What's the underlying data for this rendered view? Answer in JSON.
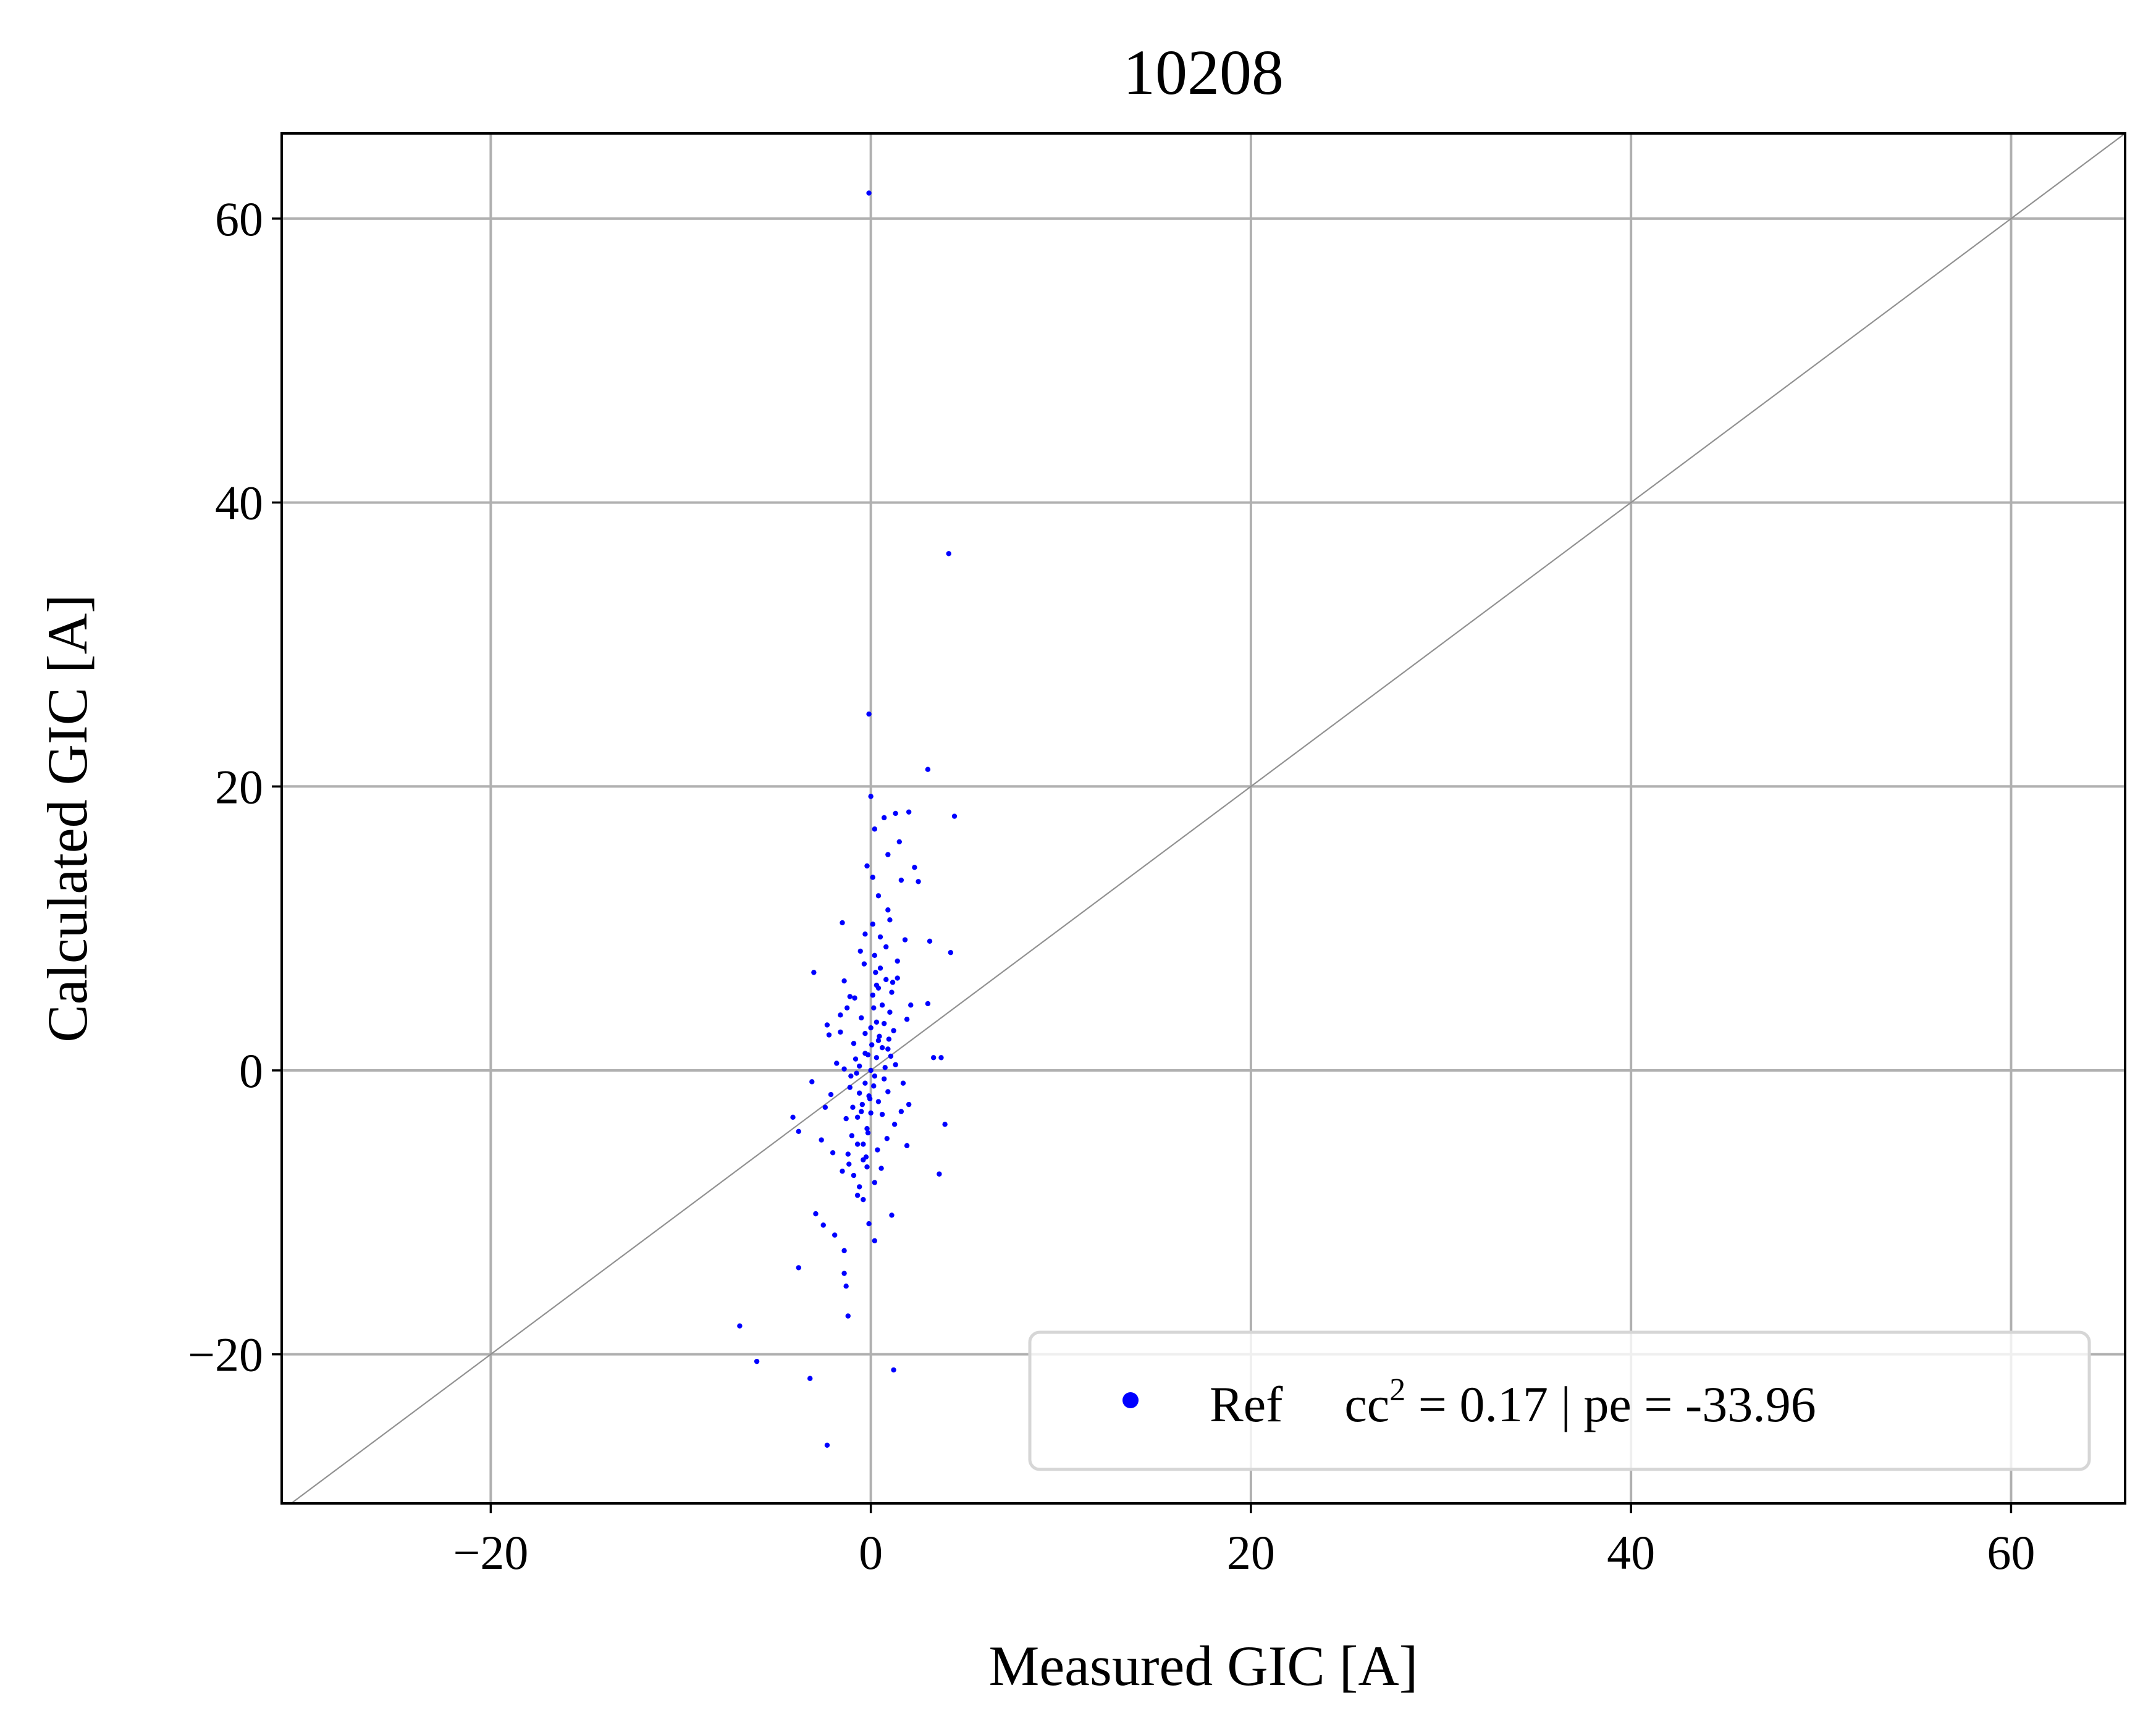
{
  "chart_data": {
    "type": "scatter",
    "title": "10208",
    "xlabel": "Measured GIC [A]",
    "ylabel": "Calculated GIC [A]",
    "xlim": [
      -31,
      66
    ],
    "ylim": [
      -30.5,
      66
    ],
    "xticks": [
      -20,
      0,
      20,
      40,
      60
    ],
    "yticks": [
      -20,
      0,
      20,
      40,
      60
    ],
    "xtick_labels": [
      "−20",
      "0",
      "20",
      "40",
      "60"
    ],
    "ytick_labels": [
      "−20",
      "0",
      "20",
      "40",
      "60"
    ],
    "grid": true,
    "identity_line": true,
    "legend": {
      "placement": "lower-right",
      "label": "Ref",
      "stat_prefix": "cc",
      "stat_superscript": "2",
      "stat_suffix": " = 0.17 | pe = -33.96"
    },
    "series": [
      {
        "name": "Ref",
        "color": "#0000ff",
        "marker": "dot",
        "points": [
          [
            -0.1,
            61.8
          ],
          [
            4.1,
            36.4
          ],
          [
            -0.1,
            25.1
          ],
          [
            3.0,
            21.2
          ],
          [
            4.4,
            17.9
          ],
          [
            1.3,
            18.1
          ],
          [
            0.7,
            17.8
          ],
          [
            2.0,
            18.2
          ],
          [
            0.0,
            19.3
          ],
          [
            0.2,
            17.0
          ],
          [
            1.5,
            16.1
          ],
          [
            0.9,
            15.2
          ],
          [
            2.3,
            14.3
          ],
          [
            -0.2,
            14.4
          ],
          [
            0.1,
            13.6
          ],
          [
            1.6,
            13.4
          ],
          [
            2.5,
            13.3
          ],
          [
            0.4,
            12.3
          ],
          [
            -1.5,
            10.4
          ],
          [
            0.9,
            11.3
          ],
          [
            1.0,
            10.6
          ],
          [
            3.1,
            9.1
          ],
          [
            4.2,
            8.3
          ],
          [
            -0.3,
            9.6
          ],
          [
            1.8,
            9.2
          ],
          [
            -3.0,
            6.9
          ],
          [
            3.0,
            4.7
          ],
          [
            2.1,
            4.6
          ],
          [
            -1.4,
            6.3
          ],
          [
            -1.1,
            5.2
          ],
          [
            -2.3,
            3.2
          ],
          [
            -1.6,
            2.7
          ],
          [
            3.3,
            0.9
          ],
          [
            3.7,
            0.9
          ],
          [
            -3.1,
            -0.8
          ],
          [
            -4.1,
            -3.3
          ],
          [
            -3.8,
            -4.3
          ],
          [
            -2.0,
            -5.8
          ],
          [
            3.9,
            -3.8
          ],
          [
            3.6,
            -7.3
          ],
          [
            -2.9,
            -10.1
          ],
          [
            -2.5,
            -10.9
          ],
          [
            -1.9,
            -11.6
          ],
          [
            -1.4,
            -12.7
          ],
          [
            -3.8,
            -13.9
          ],
          [
            -1.3,
            -15.2
          ],
          [
            -1.4,
            -14.3
          ],
          [
            -1.2,
            -17.3
          ],
          [
            -6.9,
            -18.0
          ],
          [
            -6.0,
            -20.5
          ],
          [
            -3.2,
            -21.7
          ],
          [
            1.2,
            -21.1
          ],
          [
            -2.3,
            -26.4
          ],
          [
            0.2,
            -12.0
          ],
          [
            1.1,
            -10.2
          ],
          [
            -2.6,
            -4.9
          ],
          [
            -2.4,
            -2.6
          ],
          [
            -2.1,
            -1.7
          ],
          [
            -1.8,
            0.5
          ],
          [
            2.0,
            -2.4
          ],
          [
            1.9,
            -5.3
          ],
          [
            1.7,
            -0.9
          ],
          [
            -2.2,
            2.5
          ],
          [
            1.9,
            3.6
          ],
          [
            1.4,
            6.5
          ],
          [
            -0.6,
            0.3
          ],
          [
            0.2,
            -0.4
          ],
          [
            -0.3,
            1.2
          ],
          [
            0.4,
            2.1
          ],
          [
            -0.1,
            -1.8
          ],
          [
            0.3,
            3.4
          ],
          [
            -0.5,
            -2.9
          ],
          [
            0.6,
            4.6
          ],
          [
            -0.2,
            -4.1
          ],
          [
            0.1,
            5.3
          ],
          [
            -0.7,
            -5.2
          ],
          [
            0.8,
            6.4
          ],
          [
            -0.4,
            -6.3
          ],
          [
            0.5,
            7.2
          ],
          [
            -0.9,
            -7.4
          ],
          [
            0.2,
            8.1
          ],
          [
            -0.6,
            -8.2
          ],
          [
            0.9,
            1.5
          ],
          [
            -1.1,
            -1.2
          ],
          [
            0.0,
            0.0
          ],
          [
            1.2,
            2.8
          ],
          [
            -1.3,
            -3.4
          ],
          [
            0.7,
            -0.6
          ],
          [
            -0.8,
            0.8
          ],
          [
            0.4,
            -2.2
          ],
          [
            -0.3,
            2.6
          ],
          [
            1.0,
            4.1
          ],
          [
            -1.0,
            -4.6
          ],
          [
            0.6,
            -3.1
          ],
          [
            -0.5,
            3.7
          ],
          [
            0.3,
            6.0
          ],
          [
            -0.2,
            -6.8
          ],
          [
            1.1,
            5.5
          ],
          [
            -1.2,
            -5.9
          ],
          [
            0.2,
            -7.9
          ],
          [
            0.5,
            9.4
          ],
          [
            -0.4,
            -9.1
          ],
          [
            0.8,
            8.7
          ],
          [
            -0.7,
            -8.8
          ],
          [
            0.1,
            10.3
          ],
          [
            -0.1,
            -10.8
          ],
          [
            1.3,
            0.4
          ],
          [
            -1.4,
            0.1
          ],
          [
            0.9,
            -1.5
          ],
          [
            -0.9,
            1.9
          ],
          [
            0.0,
            3.0
          ],
          [
            0.0,
            -3.0
          ],
          [
            0.3,
            0.9
          ],
          [
            -0.3,
            -0.9
          ],
          [
            0.6,
            1.6
          ],
          [
            -0.6,
            -1.6
          ],
          [
            0.45,
            2.4
          ],
          [
            -0.45,
            -2.4
          ],
          [
            0.15,
            4.4
          ],
          [
            -0.15,
            -4.4
          ],
          [
            0.7,
            3.3
          ],
          [
            -0.7,
            -3.3
          ],
          [
            1.4,
            7.7
          ],
          [
            -1.5,
            -7.1
          ],
          [
            0.25,
            6.9
          ],
          [
            -0.25,
            -6.1
          ],
          [
            0.85,
            -4.8
          ],
          [
            -0.85,
            5.1
          ],
          [
            1.6,
            -2.9
          ],
          [
            -1.6,
            3.9
          ],
          [
            0.35,
            -5.6
          ],
          [
            -0.35,
            7.5
          ],
          [
            1.05,
            1.0
          ],
          [
            -1.05,
            -0.4
          ],
          [
            0.55,
            -6.9
          ],
          [
            -0.55,
            8.4
          ],
          [
            0.05,
            1.8
          ],
          [
            -0.05,
            -2.0
          ],
          [
            0.75,
            0.2
          ],
          [
            -0.75,
            -0.2
          ],
          [
            1.25,
            -3.8
          ],
          [
            -1.25,
            4.4
          ],
          [
            0.15,
            -1.1
          ],
          [
            -0.15,
            1.1
          ],
          [
            0.95,
            2.2
          ],
          [
            -0.95,
            -2.6
          ],
          [
            0.4,
            5.8
          ],
          [
            -0.4,
            -5.2
          ],
          [
            1.15,
            6.2
          ],
          [
            -1.15,
            -6.6
          ]
        ]
      }
    ]
  }
}
